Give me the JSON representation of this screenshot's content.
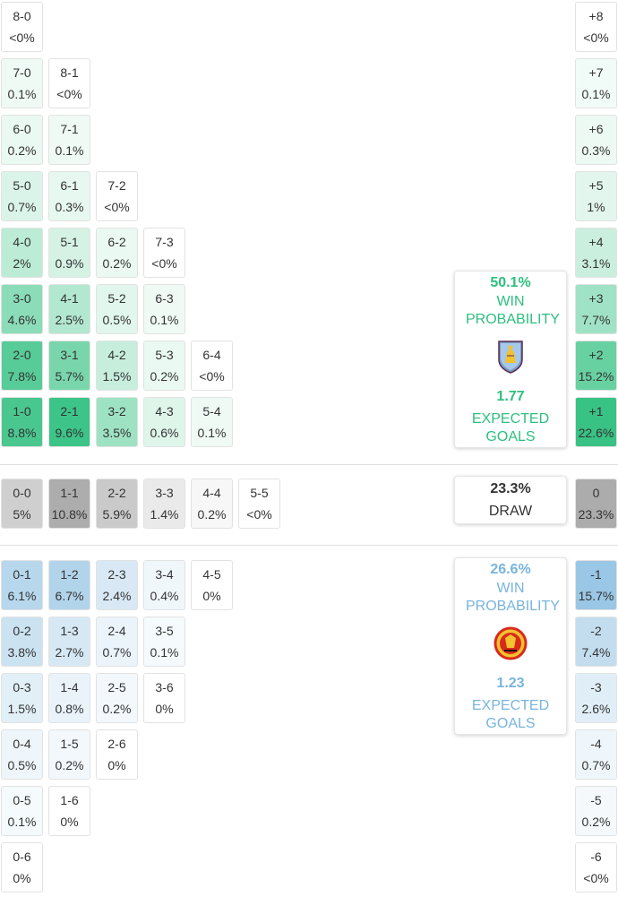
{
  "colors": {
    "home": "#2dbf7e",
    "away": "#78b4dc",
    "draw": "#a8a8a8"
  },
  "home_card": {
    "win_pct": "50.1%",
    "win_label": "WIN PROBABILITY",
    "xg": "1.77",
    "xg_label": "EXPECTED GOALS",
    "crest_icon": "aston-villa-crest-icon"
  },
  "draw_card": {
    "pct": "23.3%",
    "label": "DRAW"
  },
  "away_card": {
    "win_pct": "26.6%",
    "win_label": "WIN PROBABILITY",
    "xg": "1.23",
    "xg_label": "EXPECTED GOALS",
    "crest_icon": "manchester-united-crest-icon"
  },
  "chart_data": {
    "type": "heatmap",
    "home_wins": [
      [
        {
          "s": "1-0",
          "p": "8.8%",
          "v": 8.8
        },
        {
          "s": "2-1",
          "p": "9.6%",
          "v": 9.6
        },
        {
          "s": "3-2",
          "p": "3.5%",
          "v": 3.5
        },
        {
          "s": "4-3",
          "p": "0.6%",
          "v": 0.6
        },
        {
          "s": "5-4",
          "p": "0.1%",
          "v": 0.1
        }
      ],
      [
        {
          "s": "2-0",
          "p": "7.8%",
          "v": 7.8
        },
        {
          "s": "3-1",
          "p": "5.7%",
          "v": 5.7
        },
        {
          "s": "4-2",
          "p": "1.5%",
          "v": 1.5
        },
        {
          "s": "5-3",
          "p": "0.2%",
          "v": 0.2
        },
        {
          "s": "6-4",
          "p": "<0%",
          "v": 0
        }
      ],
      [
        {
          "s": "3-0",
          "p": "4.6%",
          "v": 4.6
        },
        {
          "s": "4-1",
          "p": "2.5%",
          "v": 2.5
        },
        {
          "s": "5-2",
          "p": "0.5%",
          "v": 0.5
        },
        {
          "s": "6-3",
          "p": "0.1%",
          "v": 0.1
        }
      ],
      [
        {
          "s": "4-0",
          "p": "2%",
          "v": 2
        },
        {
          "s": "5-1",
          "p": "0.9%",
          "v": 0.9
        },
        {
          "s": "6-2",
          "p": "0.2%",
          "v": 0.2
        },
        {
          "s": "7-3",
          "p": "<0%",
          "v": 0
        }
      ],
      [
        {
          "s": "5-0",
          "p": "0.7%",
          "v": 0.7
        },
        {
          "s": "6-1",
          "p": "0.3%",
          "v": 0.3
        },
        {
          "s": "7-2",
          "p": "<0%",
          "v": 0
        }
      ],
      [
        {
          "s": "6-0",
          "p": "0.2%",
          "v": 0.2
        },
        {
          "s": "7-1",
          "p": "0.1%",
          "v": 0.1
        }
      ],
      [
        {
          "s": "7-0",
          "p": "0.1%",
          "v": 0.1
        },
        {
          "s": "8-1",
          "p": "<0%",
          "v": 0
        }
      ],
      [
        {
          "s": "8-0",
          "p": "<0%",
          "v": 0
        }
      ]
    ],
    "draws": [
      {
        "s": "0-0",
        "p": "5%",
        "v": 5
      },
      {
        "s": "1-1",
        "p": "10.8%",
        "v": 10.8
      },
      {
        "s": "2-2",
        "p": "5.9%",
        "v": 5.9
      },
      {
        "s": "3-3",
        "p": "1.4%",
        "v": 1.4
      },
      {
        "s": "4-4",
        "p": "0.2%",
        "v": 0.2
      },
      {
        "s": "5-5",
        "p": "<0%",
        "v": 0
      }
    ],
    "away_wins": [
      [
        {
          "s": "0-1",
          "p": "6.1%",
          "v": 6.1
        },
        {
          "s": "1-2",
          "p": "6.7%",
          "v": 6.7
        },
        {
          "s": "2-3",
          "p": "2.4%",
          "v": 2.4
        },
        {
          "s": "3-4",
          "p": "0.4%",
          "v": 0.4
        },
        {
          "s": "4-5",
          "p": "0%",
          "v": 0
        }
      ],
      [
        {
          "s": "0-2",
          "p": "3.8%",
          "v": 3.8
        },
        {
          "s": "1-3",
          "p": "2.7%",
          "v": 2.7
        },
        {
          "s": "2-4",
          "p": "0.7%",
          "v": 0.7
        },
        {
          "s": "3-5",
          "p": "0.1%",
          "v": 0.1
        }
      ],
      [
        {
          "s": "0-3",
          "p": "1.5%",
          "v": 1.5
        },
        {
          "s": "1-4",
          "p": "0.8%",
          "v": 0.8
        },
        {
          "s": "2-5",
          "p": "0.2%",
          "v": 0.2
        },
        {
          "s": "3-6",
          "p": "0%",
          "v": 0
        }
      ],
      [
        {
          "s": "0-4",
          "p": "0.5%",
          "v": 0.5
        },
        {
          "s": "1-5",
          "p": "0.2%",
          "v": 0.2
        },
        {
          "s": "2-6",
          "p": "0%",
          "v": 0
        }
      ],
      [
        {
          "s": "0-5",
          "p": "0.1%",
          "v": 0.1
        },
        {
          "s": "1-6",
          "p": "0%",
          "v": 0
        }
      ],
      [
        {
          "s": "0-6",
          "p": "0%",
          "v": 0
        }
      ]
    ],
    "margins_home": [
      {
        "s": "+1",
        "p": "22.6%",
        "v": 22.6
      },
      {
        "s": "+2",
        "p": "15.2%",
        "v": 15.2
      },
      {
        "s": "+3",
        "p": "7.7%",
        "v": 7.7
      },
      {
        "s": "+4",
        "p": "3.1%",
        "v": 3.1
      },
      {
        "s": "+5",
        "p": "1%",
        "v": 1
      },
      {
        "s": "+6",
        "p": "0.3%",
        "v": 0.3
      },
      {
        "s": "+7",
        "p": "0.1%",
        "v": 0.1
      },
      {
        "s": "+8",
        "p": "<0%",
        "v": 0
      }
    ],
    "margin_draw": {
      "s": "0",
      "p": "23.3%",
      "v": 23.3
    },
    "margins_away": [
      {
        "s": "-1",
        "p": "15.7%",
        "v": 15.7
      },
      {
        "s": "-2",
        "p": "7.4%",
        "v": 7.4
      },
      {
        "s": "-3",
        "p": "2.6%",
        "v": 2.6
      },
      {
        "s": "-4",
        "p": "0.7%",
        "v": 0.7
      },
      {
        "s": "-5",
        "p": "0.2%",
        "v": 0.2
      },
      {
        "s": "-6",
        "p": "<0%",
        "v": 0
      }
    ]
  }
}
